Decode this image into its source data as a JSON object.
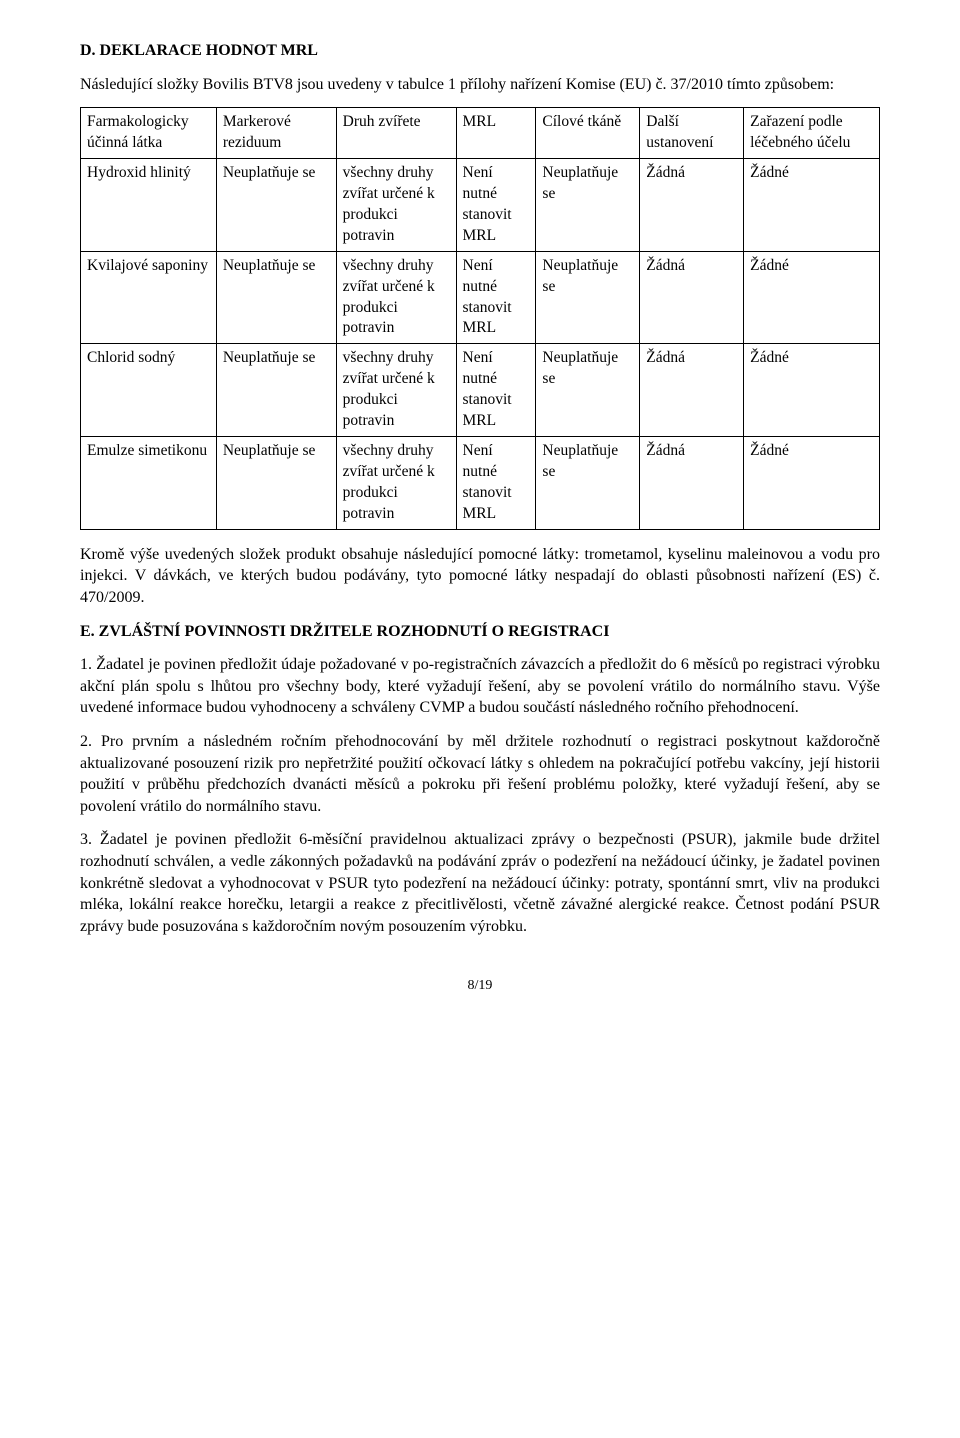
{
  "sectionD": {
    "heading": "D.    DEKLARACE HODNOT MRL",
    "intro": "Následující složky Bovilis BTV8 jsou uvedeny v tabulce 1 přílohy nařízení Komise (EU) č. 37/2010 tímto způsobem:"
  },
  "table": {
    "columns": [
      "Farmakologicky účinná látka",
      "Markerové reziduum",
      "Druh zvířete",
      "MRL",
      "Cílové tkáně",
      "Další ustanovení",
      "Zařazení podle léčebného účelu"
    ],
    "col_widths": [
      "17%",
      "15%",
      "15%",
      "10%",
      "13%",
      "13%",
      "17%"
    ],
    "rows": [
      [
        "Hydroxid hlinitý",
        "Neuplatňuje se",
        "všechny druhy zvířat určené k produkci potravin",
        "Není nutné stanovit MRL",
        "Neuplatňuje se",
        "Žádná",
        "Žádné"
      ],
      [
        "Kvilajové saponiny",
        "Neuplatňuje se",
        "všechny druhy zvířat určené k produkci potravin",
        "Není nutné stanovit MRL",
        "Neuplatňuje se",
        "Žádná",
        "Žádné"
      ],
      [
        "Chlorid sodný",
        "Neuplatňuje se",
        "všechny druhy zvířat určené k produkci potravin",
        "Není nutné stanovit MRL",
        "Neuplatňuje se",
        "Žádná",
        "Žádné"
      ],
      [
        "Emulze simetikonu",
        "Neuplatňuje se",
        "všechny druhy zvířat určené k produkci potravin",
        "Není nutné stanovit MRL",
        "Neuplatňuje se",
        "Žádná",
        "Žádné"
      ]
    ]
  },
  "post_table": "Kromě výše uvedených složek produkt obsahuje následující pomocné látky: trometamol, kyselinu maleinovou a vodu pro injekci. V dávkách, ve kterých budou podávány, tyto pomocné látky nespadají do oblasti působnosti nařízení (ES) č. 470/2009.",
  "sectionE": {
    "heading": "E.    ZVLÁŠTNÍ POVINNOSTI DRŽITELE ROZHODNUTÍ O REGISTRACI",
    "items": [
      "1. Žadatel je povinen předložit údaje požadované v po-registračních závazcích a předložit do 6 měsíců po registraci výrobku akční plán spolu s lhůtou pro všechny body, které vyžadují řešení, aby se povolení vrátilo do normálního stavu. Výše uvedené informace budou vyhodnoceny a schváleny CVMP a budou součástí následného ročního přehodnocení.",
      "2. Pro prvním a následném ročním přehodnocování by měl držitele rozhodnutí o registraci poskytnout každoročně aktualizované posouzení rizik pro nepřetržité použití očkovací látky s ohledem na pokračující potřebu vakcíny, její historii použití v průběhu předchozích dvanácti měsíců a pokroku při řešení problému položky, které vyžadují řešení, aby se povolení vrátilo do normálního stavu.",
      "3. Žadatel je povinen předložit 6-měsíční pravidelnou aktualizaci zprávy o bezpečnosti (PSUR), jakmile bude držitel rozhodnutí schválen, a vedle zákonných požadavků na podávání zpráv o podezření na nežádoucí účinky, je žadatel povinen konkrétně sledovat a vyhodnocovat v PSUR tyto podezření na nežádoucí účinky: potraty, spontánní smrt, vliv na produkci mléka, lokální reakce horečku, letargii a reakce z přecitlivělosti, včetně závažné alergické reakce. Četnost podání PSUR zprávy bude posuzována s každoročním novým posouzením výrobku."
    ]
  },
  "page_number": "8/19"
}
